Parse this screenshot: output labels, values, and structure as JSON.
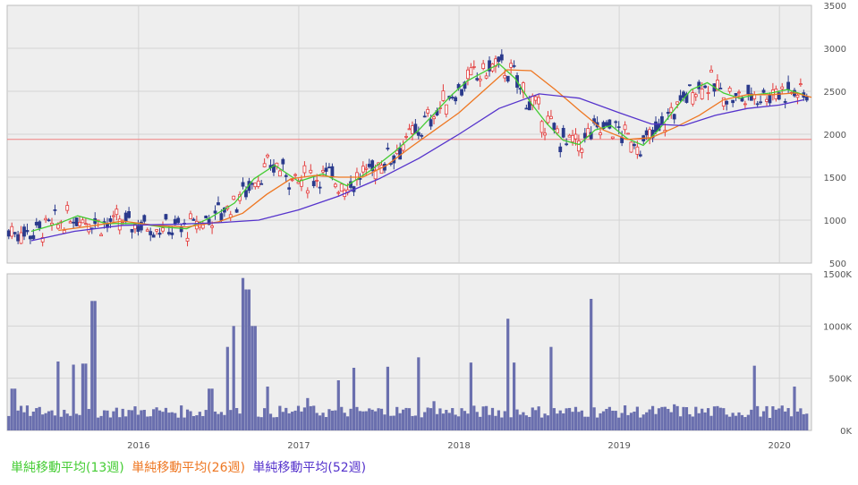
{
  "chart_data": [
    {
      "type": "candlestick",
      "panel": "price",
      "y_ticks": [
        "3500",
        "3000",
        "2500",
        "2000",
        "1500",
        "1000",
        "500"
      ],
      "y_tick_values": [
        3500,
        3000,
        2500,
        2000,
        1500,
        1000,
        500
      ],
      "ylim": [
        500,
        3500
      ],
      "x_ticks": [
        "2016",
        "2017",
        "2018",
        "2019",
        "2020"
      ],
      "x_tick_values": [
        2016.0,
        2017.0,
        2018.0,
        2019.0,
        2020.0
      ],
      "xlim": [
        2015.18,
        2020.2
      ],
      "grid": true,
      "reference_line": {
        "value": 1940,
        "color": "#f08080"
      },
      "series": [
        {
          "name": "単純移動平均(13週)",
          "color": "#44cc33",
          "x": [
            2015.33,
            2015.5,
            2015.62,
            2015.8,
            2016.0,
            2016.15,
            2016.3,
            2016.45,
            2016.6,
            2016.72,
            2016.85,
            2017.0,
            2017.15,
            2017.3,
            2017.45,
            2017.6,
            2017.75,
            2017.85,
            2017.95,
            2018.05,
            2018.15,
            2018.25,
            2018.35,
            2018.45,
            2018.55,
            2018.65,
            2018.75,
            2018.85,
            2018.95,
            2019.05,
            2019.15,
            2019.25,
            2019.35,
            2019.45,
            2019.55,
            2019.65,
            2019.75,
            2019.85,
            2019.95,
            2020.05,
            2020.15
          ],
          "values": [
            870,
            960,
            1050,
            960,
            960,
            920,
            900,
            1030,
            1200,
            1480,
            1640,
            1450,
            1540,
            1400,
            1580,
            1800,
            2050,
            2250,
            2450,
            2620,
            2720,
            2820,
            2650,
            2360,
            2120,
            1930,
            1880,
            2050,
            2100,
            1950,
            1870,
            2060,
            2300,
            2520,
            2600,
            2480,
            2420,
            2460,
            2480,
            2520,
            2460
          ]
        },
        {
          "name": "単純移動平均(26週)",
          "color": "#ee7722",
          "x": [
            2015.5,
            2015.7,
            2015.9,
            2016.1,
            2016.3,
            2016.5,
            2016.65,
            2016.8,
            2016.95,
            2017.1,
            2017.25,
            2017.4,
            2017.55,
            2017.7,
            2017.85,
            2018.0,
            2018.15,
            2018.3,
            2018.45,
            2018.6,
            2018.75,
            2018.9,
            2019.05,
            2019.2,
            2019.35,
            2019.5,
            2019.65,
            2019.8,
            2019.95,
            2020.1,
            2020.2
          ],
          "values": [
            880,
            930,
            990,
            940,
            920,
            980,
            1080,
            1300,
            1480,
            1520,
            1500,
            1500,
            1640,
            1850,
            2050,
            2250,
            2500,
            2750,
            2740,
            2520,
            2280,
            2050,
            1940,
            1960,
            2080,
            2220,
            2400,
            2460,
            2460,
            2480,
            2430
          ]
        },
        {
          "name": "単純移動平均(52週)",
          "color": "#5533cc",
          "x": [
            2015.33,
            2015.6,
            2015.9,
            2016.2,
            2016.5,
            2016.75,
            2017.0,
            2017.25,
            2017.5,
            2017.75,
            2018.0,
            2018.25,
            2018.5,
            2018.75,
            2019.0,
            2019.2,
            2019.4,
            2019.6,
            2019.8,
            2020.0,
            2020.15
          ],
          "values": [
            760,
            870,
            940,
            950,
            970,
            1000,
            1120,
            1280,
            1480,
            1720,
            2000,
            2300,
            2470,
            2420,
            2250,
            2120,
            2100,
            2220,
            2300,
            2340,
            2400
          ]
        }
      ]
    },
    {
      "type": "bar",
      "panel": "volume",
      "y_ticks": [
        "1500K",
        "1000K",
        "500K",
        "0K"
      ],
      "y_tick_values": [
        1500,
        1000,
        500,
        0
      ],
      "ylim": [
        0,
        1500
      ],
      "x_ticks": [
        "2016",
        "2017",
        "2018",
        "2019",
        "2020"
      ],
      "grid": true,
      "series": [
        {
          "name": "",
          "color": "#6a6fae",
          "x": [
            2015.22,
            2015.35,
            2015.5,
            2015.6,
            2015.66,
            2015.72,
            2016.0,
            2016.3,
            2016.45,
            2016.55,
            2016.6,
            2016.65,
            2016.68,
            2016.72,
            2016.8,
            2017.05,
            2017.25,
            2017.35,
            2017.55,
            2017.75,
            2017.85,
            2018.08,
            2018.3,
            2018.35,
            2018.58,
            2018.83,
            2019.1,
            2019.35,
            2019.6,
            2019.85,
            2020.1
          ],
          "values": [
            400,
            180,
            660,
            630,
            640,
            1240,
            150,
            200,
            400,
            800,
            1000,
            1460,
            1350,
            1000,
            420,
            310,
            480,
            600,
            610,
            700,
            280,
            650,
            1070,
            650,
            800,
            1260,
            180,
            250,
            230,
            620,
            420
          ]
        }
      ]
    }
  ],
  "legend": [
    {
      "label": "単純移動平均(13週)",
      "color": "#44cc33"
    },
    {
      "label": "単純移動平均(26週)",
      "color": "#ee7722"
    },
    {
      "label": "単純移動平均(52週)",
      "color": "#5533cc"
    }
  ]
}
